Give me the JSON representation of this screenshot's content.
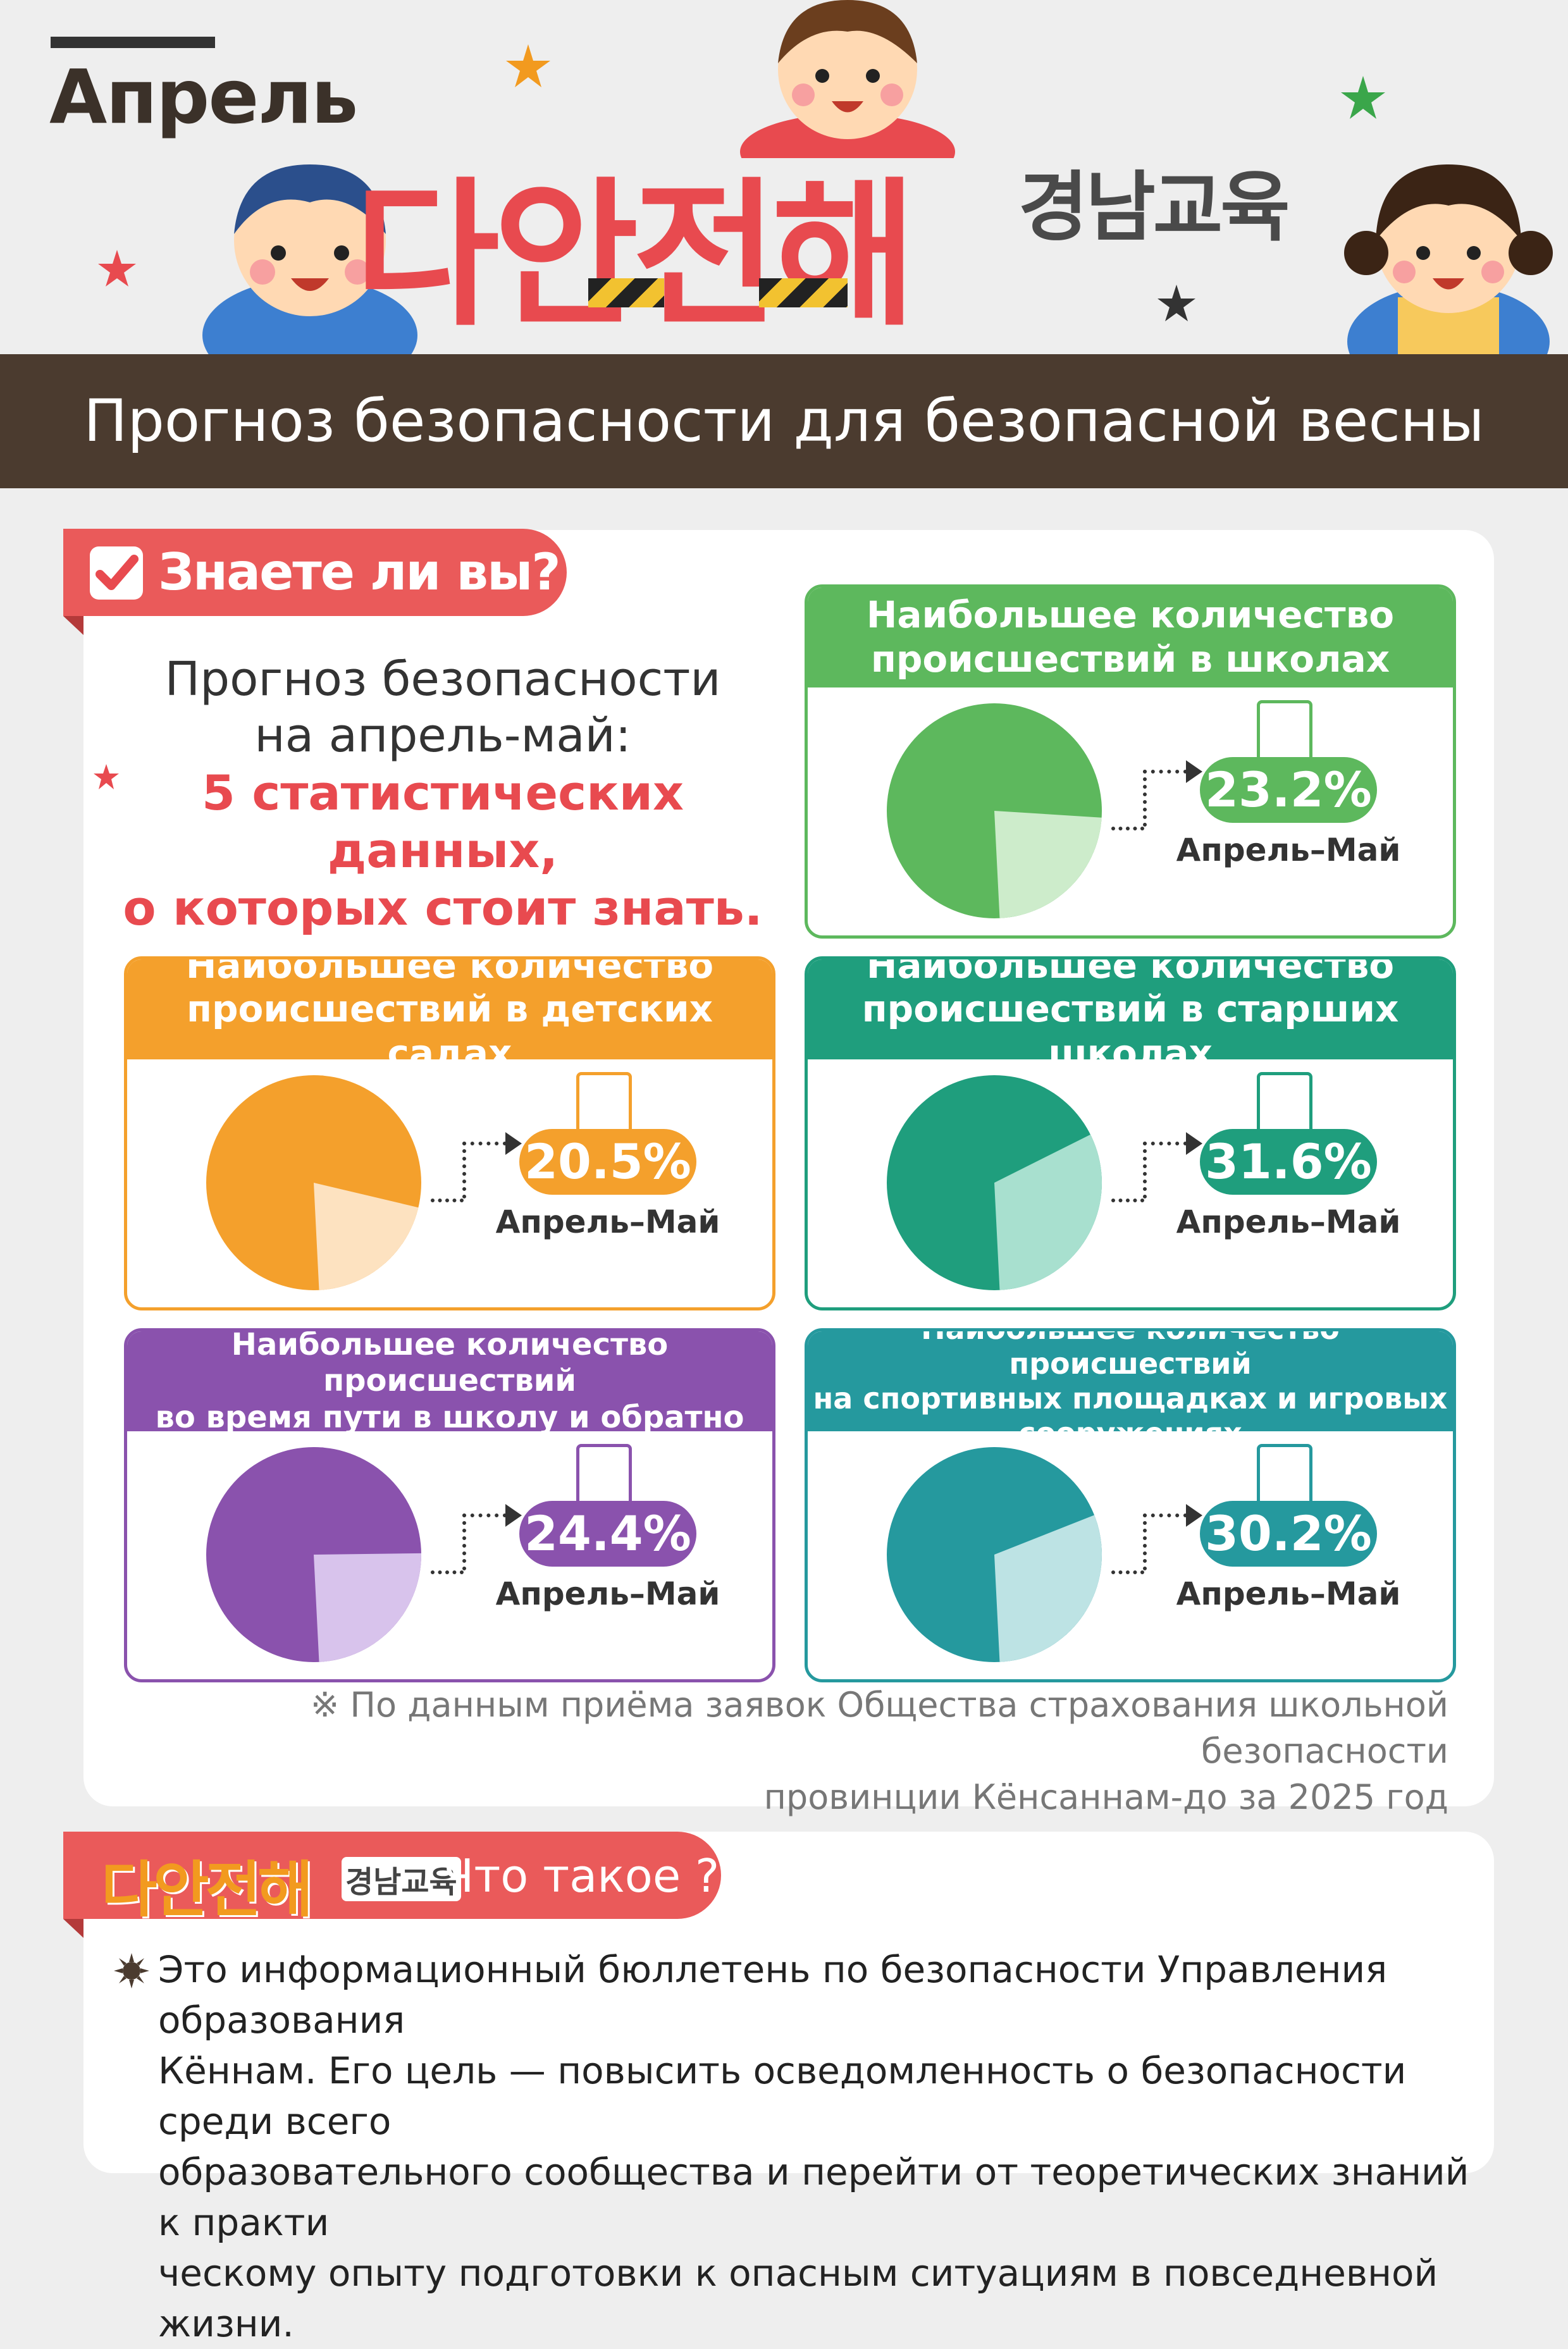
{
  "header": {
    "month": "Апрель",
    "brand_logo": "다안전해",
    "sub_brand": "경남교육",
    "title": "Прогноз безопасности для безопасной весны"
  },
  "know": {
    "tag": "Знаете ли вы?",
    "intro_line1": "Прогноз безопасности",
    "intro_line2": "на апрель-май:",
    "intro_highlight1": "5 статистических данных,",
    "intro_highlight2": "о которых стоит знать."
  },
  "colors": {
    "green": "#5db85d",
    "orange": "#f4a02c",
    "teal": "#1f9e7d",
    "purple": "#8a52ad",
    "cyan": "#25999e",
    "tag_red": "#ea5a5a",
    "brown": "#4b3b2f"
  },
  "chart_data": [
    {
      "type": "pie",
      "title": "Наибольшее количество происшествий в школах",
      "slices": [
        {
          "label": "Апрель–Май",
          "value": 23.2
        },
        {
          "label": "",
          "value": 76.8
        }
      ],
      "value_label": "23.2%",
      "period": "Апрель–Май",
      "icon": "school-building-icon"
    },
    {
      "type": "pie",
      "title": "Наибольшее количество происшествий в детских садах",
      "slices": [
        {
          "label": "Апрель–Май",
          "value": 20.5
        },
        {
          "label": "",
          "value": 79.5
        }
      ],
      "value_label": "20.5%",
      "period": "Апрель–Май",
      "icon": "kindergarten-icon"
    },
    {
      "type": "pie",
      "title": "Наибольшее количество происшествий в старших школах",
      "slices": [
        {
          "label": "Апрель–Май",
          "value": 31.6
        },
        {
          "label": "",
          "value": 68.4
        }
      ],
      "value_label": "31.6%",
      "period": "Апрель–Май",
      "icon": "high-school-icon"
    },
    {
      "type": "pie",
      "title": "Наибольшее количество происшествий во время пути в школу и обратно",
      "slices": [
        {
          "label": "Апрель–Май",
          "value": 24.4
        },
        {
          "label": "",
          "value": 75.6
        }
      ],
      "value_label": "24.4%",
      "period": "Апрель–Май",
      "icon": "backpack-icon"
    },
    {
      "type": "pie",
      "title": "Наибольшее количество происшествий на спортивных площадках и игровых сооружениях",
      "slices": [
        {
          "label": "Апрель–Май",
          "value": 30.2
        },
        {
          "label": "",
          "value": 69.8
        }
      ],
      "value_label": "30.2%",
      "period": "Апрель–Май",
      "icon": "duck-toy-icon"
    }
  ],
  "cards": [
    {
      "title_l1": "Наибольшее количество",
      "title_l2": "происшествий в школах"
    },
    {
      "title_l1": "Наибольшее количество",
      "title_l2": "происшествий в детских садах"
    },
    {
      "title_l1": "Наибольшее количество",
      "title_l2": "происшествий в старших школах"
    },
    {
      "title_l1": "Наибольшее количество происшествий",
      "title_l2": "во время пути в школу и обратно"
    },
    {
      "title_l1": "Наибольшее количество происшествий",
      "title_l2": "на спортивных площадках  и игровых",
      "title_l3": "сооружениях"
    }
  ],
  "source": {
    "line1": "※ По данным приёма заявок Общества страхования школьной безопасности",
    "line2": "провинции Кёнсаннам-до за 2025 год"
  },
  "what": {
    "tag_brand": "다안전해",
    "tag_sub": "경남교육",
    "tag_text": "Что такое ?",
    "line1": "Это информационный бюллетень по безопасности Управления образования",
    "line2": "Кённам. Его цель — повысить осведомленность о безопасности среди всего",
    "line3": "образовательного сообщества и перейти от теоретических знаний к практи",
    "line4": "ческому опыту подготовки  к опасным ситуациям в повседневной жизни."
  }
}
